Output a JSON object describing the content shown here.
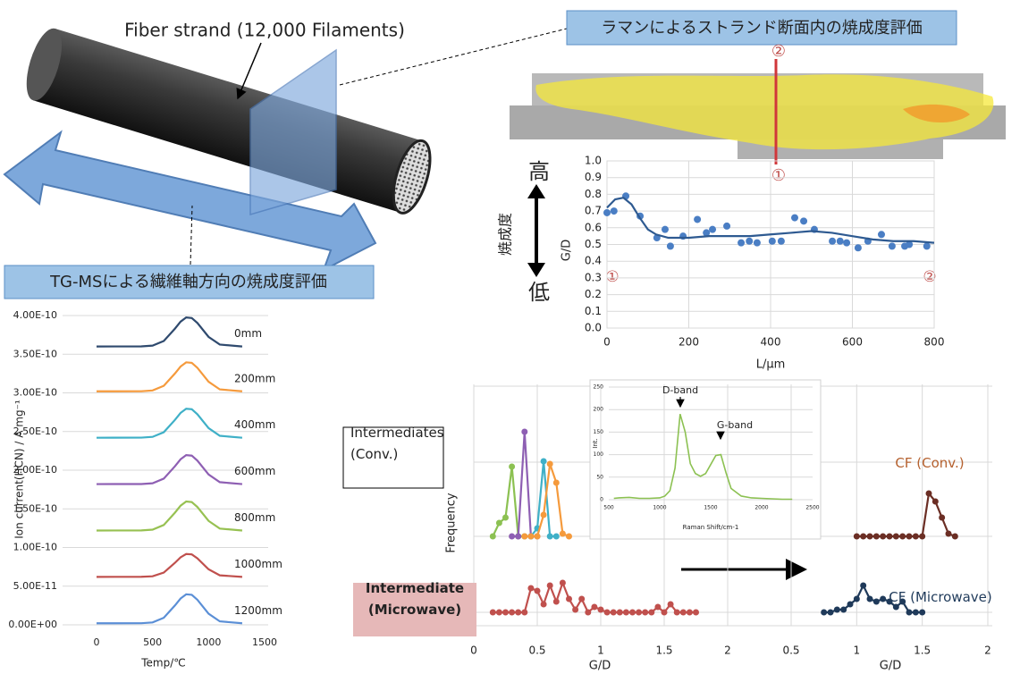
{
  "figure": {
    "strand_label": "Fiber strand (12,000 Filaments)",
    "raman_banner": "ラマンによるストランド断面内の焼成度評価",
    "tgms_banner": "TG-MSによる繊維軸方向の焼成度評価",
    "high": "高",
    "low": "低",
    "firing_degree": "焼成度",
    "point_1": "①",
    "point_2": "②"
  },
  "chart_data": [
    {
      "type": "scatter",
      "xlabel": "L/μm",
      "ylabel": "G/D",
      "xlim": [
        0,
        800
      ],
      "ylim": [
        0,
        1.0
      ],
      "xticks": [
        0,
        200,
        400,
        600,
        800
      ],
      "yticks": [
        {
          "value": 0,
          "label": "0.0"
        },
        {
          "value": 0.1,
          "label": "0.1"
        },
        {
          "value": 0.2,
          "label": "0.2"
        },
        {
          "value": 0.3,
          "label": "0.3"
        },
        {
          "value": 0.4,
          "label": "0.4"
        },
        {
          "value": 0.5,
          "label": "0.5"
        },
        {
          "value": 0.6,
          "label": "0.6"
        },
        {
          "value": 0.7,
          "label": "0.7"
        },
        {
          "value": 0.8,
          "label": "0.8"
        },
        {
          "value": 0.9,
          "label": "0.9"
        },
        {
          "value": 1.0,
          "label": "1.0"
        }
      ],
      "grid": "both",
      "series": [
        {
          "color": "#4a7ec4",
          "style": "points",
          "x": [
            0,
            17,
            46,
            81,
            122,
            142,
            155,
            186,
            221,
            243,
            258,
            293,
            328,
            348,
            367,
            404,
            426,
            459,
            481,
            507,
            551,
            570,
            586,
            614,
            638,
            671,
            697,
            728,
            739,
            782
          ],
          "values": [
            0.69,
            0.7,
            0.79,
            0.67,
            0.54,
            0.59,
            0.49,
            0.55,
            0.65,
            0.57,
            0.59,
            0.61,
            0.51,
            0.52,
            0.51,
            0.52,
            0.52,
            0.66,
            0.64,
            0.59,
            0.52,
            0.52,
            0.51,
            0.48,
            0.52,
            0.56,
            0.49,
            0.49,
            0.5,
            0.49
          ]
        },
        {
          "color": "#2e5a91",
          "style": "line",
          "x": [
            0,
            20,
            40,
            60,
            80,
            100,
            120,
            150,
            200,
            250,
            300,
            350,
            400,
            450,
            500,
            550,
            600,
            650,
            700,
            750,
            800
          ],
          "values": [
            0.72,
            0.77,
            0.78,
            0.74,
            0.66,
            0.59,
            0.56,
            0.54,
            0.54,
            0.55,
            0.55,
            0.55,
            0.56,
            0.57,
            0.58,
            0.57,
            0.55,
            0.53,
            0.52,
            0.52,
            0.51
          ]
        }
      ]
    },
    {
      "type": "line",
      "xlabel": "Temp/℃",
      "ylabel": "Ion current(HCN) / A mg⁻¹",
      "xlim": [
        0,
        1500
      ],
      "ylim": [
        0,
        4e-10
      ],
      "xticks": [
        0,
        500,
        1000,
        1500
      ],
      "yticks": [
        {
          "value": 0,
          "label": "0.00E+00"
        },
        {
          "value": 5e-11,
          "label": "5.00E-11"
        },
        {
          "value": 1e-10,
          "label": "1.00E-10"
        },
        {
          "value": 1.5e-10,
          "label": "1.50E-10"
        },
        {
          "value": 2e-10,
          "label": "2.00E-10"
        },
        {
          "value": 2.5e-10,
          "label": "2.50E-10"
        },
        {
          "value": 3e-10,
          "label": "3.00E-10"
        },
        {
          "value": 3.5e-10,
          "label": "3.50E-10"
        },
        {
          "value": 4e-10,
          "label": "4.00E-10"
        }
      ],
      "grid": "y",
      "x": [
        0,
        400,
        500,
        600,
        700,
        750,
        800,
        850,
        900,
        1000,
        1100,
        1300
      ],
      "series": [
        {
          "name": "0mm",
          "color": "#2f4a6e",
          "style": "line",
          "values": [
            3.6e-10,
            3.601e-10,
            3.611e-10,
            3.671e-10,
            3.831e-10,
            3.921e-10,
            3.975e-10,
            3.968e-10,
            3.904e-10,
            3.724e-10,
            3.625e-10,
            3.6e-10
          ]
        },
        {
          "name": "200mm",
          "color": "#f59a3c",
          "style": "line",
          "values": [
            3.02e-10,
            3.021e-10,
            3.031e-10,
            3.091e-10,
            3.251e-10,
            3.341e-10,
            3.395e-10,
            3.388e-10,
            3.324e-10,
            3.144e-10,
            3.045e-10,
            3.02e-10
          ]
        },
        {
          "name": "400mm",
          "color": "#3fb0c7",
          "style": "line",
          "values": [
            2.42e-10,
            2.421e-10,
            2.431e-10,
            2.491e-10,
            2.651e-10,
            2.741e-10,
            2.795e-10,
            2.788e-10,
            2.724e-10,
            2.544e-10,
            2.445e-10,
            2.42e-10
          ]
        },
        {
          "name": "600mm",
          "color": "#8e5fb3",
          "style": "line",
          "values": [
            1.82e-10,
            1.821e-10,
            1.831e-10,
            1.891e-10,
            2.051e-10,
            2.141e-10,
            2.195e-10,
            2.188e-10,
            2.124e-10,
            1.944e-10,
            1.845e-10,
            1.82e-10
          ]
        },
        {
          "name": "800mm",
          "color": "#97c152",
          "style": "line",
          "values": [
            1.22e-10,
            1.221e-10,
            1.231e-10,
            1.291e-10,
            1.451e-10,
            1.541e-10,
            1.595e-10,
            1.588e-10,
            1.524e-10,
            1.344e-10,
            1.245e-10,
            1.22e-10
          ]
        },
        {
          "name": "1000mm",
          "color": "#c0504d",
          "style": "line",
          "values": [
            6.2e-11,
            6.21e-11,
            6.28e-11,
            6.76e-11,
            8.02e-11,
            8.73e-11,
            9.16e-11,
            9.11e-11,
            8.6e-11,
            7.18e-11,
            6.4e-11,
            6.2e-11
          ]
        },
        {
          "name": "1200mm",
          "color": "#5b8fd6",
          "style": "line",
          "values": [
            2e-12,
            2.1e-12,
            3.1e-12,
            9.1e-12,
            2.51e-11,
            3.41e-11,
            3.95e-11,
            3.88e-11,
            3.24e-11,
            1.44e-11,
            4.5e-12,
            2e-12
          ]
        }
      ]
    },
    {
      "type": "line",
      "xlabel": "G/D",
      "ylabel": "Frequency",
      "xlim": [
        0,
        2
      ],
      "xticks": [
        0,
        0.5,
        1,
        1.5,
        2
      ],
      "grid": "x",
      "rows": [
        {
          "label": [
            "Intermediates",
            "(Conv.)"
          ],
          "series": [
            {
              "color": "#8cc152",
              "style": "line+points",
              "x": [
                0.15,
                0.2,
                0.25,
                0.3,
                0.35,
                0.4
              ],
              "values": [
                0,
                5,
                7,
                26,
                0,
                0
              ]
            },
            {
              "color": "#8e5fb3",
              "style": "line+points",
              "x": [
                0.3,
                0.35,
                0.4,
                0.45,
                0.5
              ],
              "values": [
                0,
                0,
                39,
                0,
                0
              ]
            },
            {
              "color": "#3fb0c7",
              "style": "line+points",
              "x": [
                0.45,
                0.5,
                0.55,
                0.6,
                0.65
              ],
              "values": [
                0,
                3,
                28,
                0,
                0
              ]
            },
            {
              "color": "#f59a3c",
              "style": "line+points",
              "x": [
                0.4,
                0.45,
                0.5,
                0.55,
                0.6,
                0.65,
                0.7,
                0.75
              ],
              "values": [
                0,
                0,
                0,
                8,
                27,
                20,
                1,
                0
              ]
            }
          ]
        },
        {
          "label": [
            "Intermediate",
            "(Microwave)"
          ],
          "series": [
            {
              "color": "#c0504d",
              "style": "line+points",
              "x": [
                0.15,
                0.2,
                0.25,
                0.3,
                0.35,
                0.4,
                0.45,
                0.5,
                0.55,
                0.6,
                0.65,
                0.7,
                0.75,
                0.8,
                0.85,
                0.9,
                0.95,
                1.0,
                1.05,
                1.1,
                1.15,
                1.2,
                1.25,
                1.3,
                1.35,
                1.4,
                1.45,
                1.5,
                1.55,
                1.6,
                1.65,
                1.7,
                1.75
              ],
              "values": [
                0,
                0,
                0,
                0,
                0,
                0,
                9,
                8,
                3,
                10,
                4,
                11,
                5,
                1,
                5,
                0,
                2,
                1,
                0,
                0,
                0,
                0,
                0,
                0,
                0,
                0,
                2,
                0,
                3,
                0,
                0,
                0,
                0
              ]
            }
          ]
        }
      ]
    },
    {
      "type": "line",
      "xlabel": "G/D",
      "xlim": [
        0.5,
        2
      ],
      "xticks": [
        0.5,
        1,
        1.5,
        2
      ],
      "grid": "x",
      "rows": [
        {
          "label": [
            "CF (Conv.)"
          ],
          "series": [
            {
              "color": "#6b2e24",
              "style": "line+points",
              "x": [
                1.0,
                1.05,
                1.1,
                1.15,
                1.2,
                1.25,
                1.3,
                1.35,
                1.4,
                1.45,
                1.5,
                1.55,
                1.6,
                1.65,
                1.7,
                1.75
              ],
              "values": [
                0,
                0,
                0,
                0,
                0,
                0,
                0,
                0,
                0,
                0,
                0,
                16,
                13,
                7,
                1,
                0
              ]
            }
          ]
        },
        {
          "label": [
            "CF (Microwave)"
          ],
          "series": [
            {
              "color": "#1f3a5a",
              "style": "line+points",
              "x": [
                0.75,
                0.8,
                0.85,
                0.9,
                0.95,
                1.0,
                1.05,
                1.1,
                1.15,
                1.2,
                1.25,
                1.3,
                1.35,
                1.4,
                1.45,
                1.5
              ],
              "values": [
                0,
                0,
                1,
                1,
                3,
                5,
                10,
                5,
                4,
                5,
                4,
                2,
                4,
                0,
                0,
                0
              ]
            }
          ]
        }
      ]
    },
    {
      "type": "line",
      "xlabel": "Raman Shift/cm-1",
      "ylabel": "Int.",
      "xlim": [
        500,
        2500
      ],
      "ylim": [
        0,
        250
      ],
      "xticks": [
        500,
        1000,
        1500,
        2000,
        2500
      ],
      "yticks": [
        0,
        50,
        100,
        150,
        200,
        250
      ],
      "grid": "y",
      "annotations": [
        "D-band",
        "G-band"
      ],
      "series": [
        {
          "color": "#8cc152",
          "style": "line",
          "x": [
            550,
            600,
            700,
            800,
            900,
            1000,
            1050,
            1100,
            1150,
            1200,
            1250,
            1300,
            1350,
            1400,
            1450,
            1500,
            1550,
            1600,
            1650,
            1700,
            1800,
            1900,
            2000,
            2100,
            2200,
            2300
          ],
          "values": [
            3,
            4,
            5,
            3,
            3,
            4,
            8,
            20,
            70,
            190,
            150,
            80,
            58,
            52,
            58,
            78,
            98,
            100,
            60,
            25,
            8,
            4,
            3,
            2,
            1,
            1
          ]
        }
      ]
    }
  ]
}
